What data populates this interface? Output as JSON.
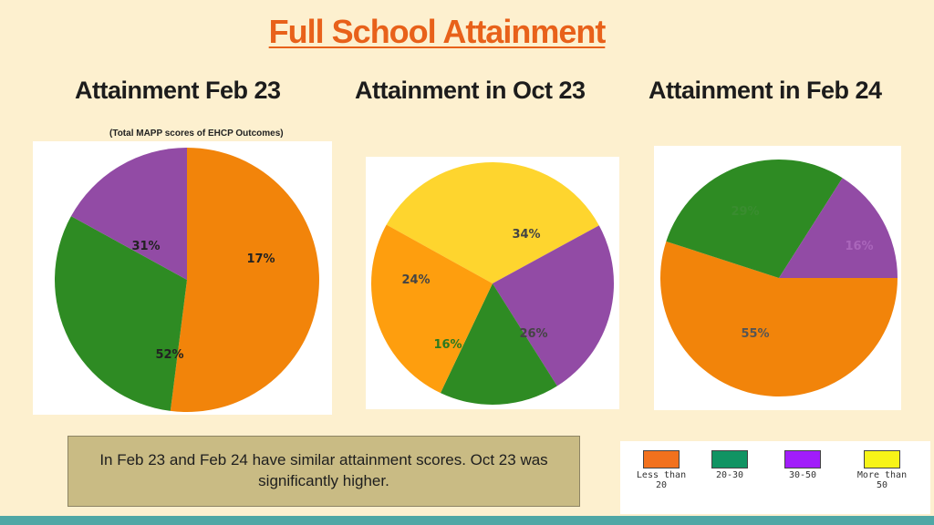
{
  "title": "Full School Attainment",
  "chart_data": [
    {
      "type": "pie",
      "title": "Attainment Feb 23",
      "subtitle": "(Total MAPP scores of EHCP Outcomes)",
      "categories": [
        "Less than 20",
        "20-30",
        "30-50"
      ],
      "values": [
        52,
        31,
        17
      ],
      "labels": [
        "52%",
        "31%",
        "17%"
      ],
      "colors": [
        "#f2840a",
        "#2e8b23",
        "#924ba5"
      ]
    },
    {
      "type": "pie",
      "title": "Attainment in Oct 23",
      "categories": [
        "More than 50",
        "30-50",
        "20-30",
        "Less than 20"
      ],
      "values": [
        34,
        24,
        16,
        26
      ],
      "labels": [
        "34%",
        "24%",
        "16%",
        "26%"
      ],
      "colors": [
        "#fed52e",
        "#924ba5",
        "#2e8b23",
        "#fe9e0e"
      ]
    },
    {
      "type": "pie",
      "title": "Attainment in Feb 24",
      "categories": [
        "Less than 20",
        "20-30",
        "30-50"
      ],
      "values": [
        55,
        29,
        16
      ],
      "labels": [
        "55%",
        "29%",
        "16%"
      ],
      "colors": [
        "#f2840a",
        "#2e8b23",
        "#924ba5"
      ]
    }
  ],
  "note": "In Feb 23 and Feb 24 have similar attainment scores. Oct 23 was significantly higher.",
  "legend": [
    {
      "label": "Less than 20",
      "color": "#f2711d"
    },
    {
      "label": "20-30",
      "color": "#119463"
    },
    {
      "label": "30-50",
      "color": "#a11dfa"
    },
    {
      "label": "More than 50",
      "color": "#f7f418"
    }
  ]
}
